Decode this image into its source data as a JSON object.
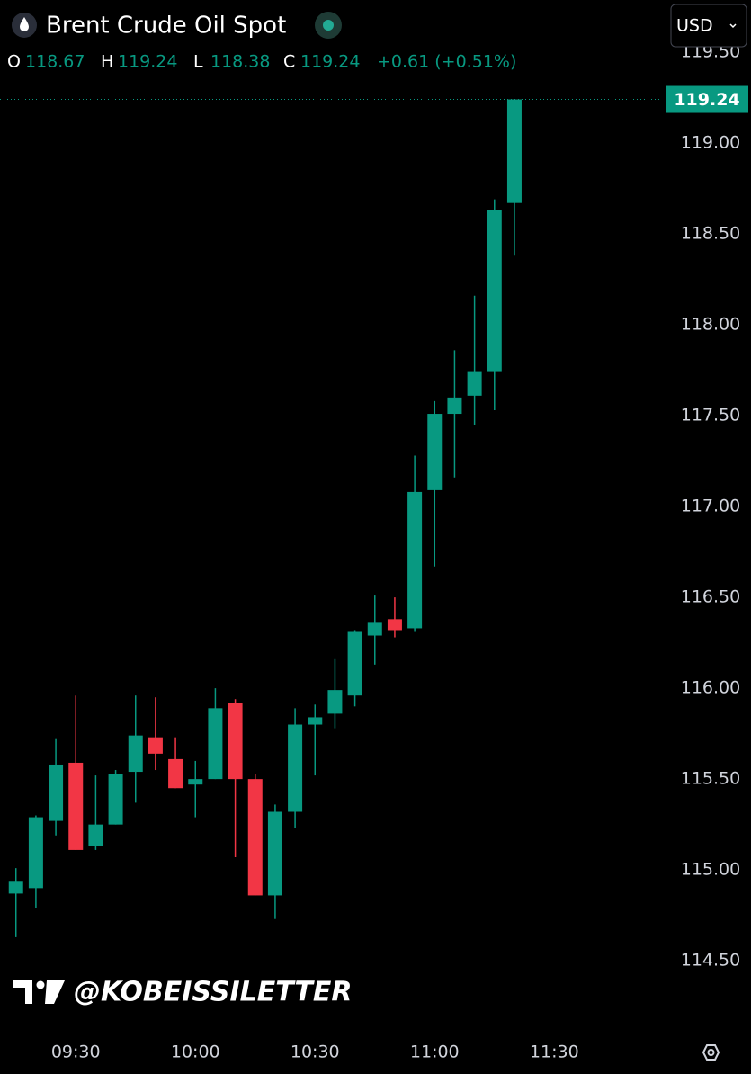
{
  "chart_data": {
    "type": "candlestick",
    "title": "Brent Crude Oil Spot",
    "currency": "USD",
    "ohlc_labels": [
      "O",
      "H",
      "L",
      "C"
    ],
    "change_label": "+0.61 (+0.51%)",
    "watermark": "@KOBEISSILETTER",
    "up_color": "#089981",
    "down_color": "#f23645",
    "x": [
      555,
      560,
      565,
      570,
      575,
      580,
      585,
      590,
      595,
      600,
      605,
      610,
      615,
      620,
      625,
      630,
      635,
      640,
      645,
      650,
      655,
      660,
      665,
      670,
      675,
      680
    ],
    "open": [
      114.87,
      114.9,
      115.27,
      115.59,
      115.13,
      115.25,
      115.54,
      115.73,
      115.61,
      115.47,
      115.5,
      115.92,
      115.5,
      114.86,
      115.32,
      115.8,
      115.86,
      115.96,
      116.29,
      116.38,
      116.33,
      117.09,
      117.51,
      117.61,
      117.74,
      118.67
    ],
    "high": [
      115.01,
      115.3,
      115.72,
      115.96,
      115.52,
      115.55,
      115.96,
      115.95,
      115.73,
      115.6,
      116.0,
      115.94,
      115.53,
      115.36,
      115.89,
      115.91,
      116.16,
      116.32,
      116.51,
      116.5,
      117.28,
      117.58,
      117.86,
      118.16,
      118.69,
      119.24
    ],
    "low": [
      114.63,
      114.79,
      115.19,
      115.11,
      115.11,
      115.25,
      115.37,
      115.55,
      115.45,
      115.29,
      115.5,
      115.07,
      114.86,
      114.73,
      115.23,
      115.52,
      115.78,
      115.9,
      116.13,
      116.28,
      116.31,
      116.67,
      117.16,
      117.45,
      117.53,
      118.38
    ],
    "close": [
      114.94,
      115.29,
      115.58,
      115.11,
      115.25,
      115.53,
      115.74,
      115.64,
      115.45,
      115.5,
      115.89,
      115.5,
      114.86,
      115.32,
      115.8,
      115.84,
      115.99,
      116.31,
      116.36,
      116.32,
      117.08,
      117.51,
      117.6,
      117.74,
      118.63,
      119.24
    ],
    "xlim": [
      551,
      717
    ],
    "xticks": [
      {
        "value": 570,
        "label": "09:30"
      },
      {
        "value": 600,
        "label": "10:00"
      },
      {
        "value": 630,
        "label": "10:30"
      },
      {
        "value": 660,
        "label": "11:00"
      },
      {
        "value": 690,
        "label": "11:30"
      }
    ],
    "ylim": [
      114.09,
      119.5
    ],
    "yticks": [
      {
        "value": 114.5,
        "label": "114.50"
      },
      {
        "value": 115,
        "label": "115.00"
      },
      {
        "value": 115.5,
        "label": "115.50"
      },
      {
        "value": 116,
        "label": "116.00"
      },
      {
        "value": 116.5,
        "label": "116.50"
      },
      {
        "value": 117,
        "label": "117.00"
      },
      {
        "value": 117.5,
        "label": "117.50"
      },
      {
        "value": 118,
        "label": "118.00"
      },
      {
        "value": 118.5,
        "label": "118.50"
      },
      {
        "value": 119,
        "label": "119.00"
      },
      {
        "value": 119.5,
        "label": "119.50"
      }
    ],
    "grid": false
  }
}
